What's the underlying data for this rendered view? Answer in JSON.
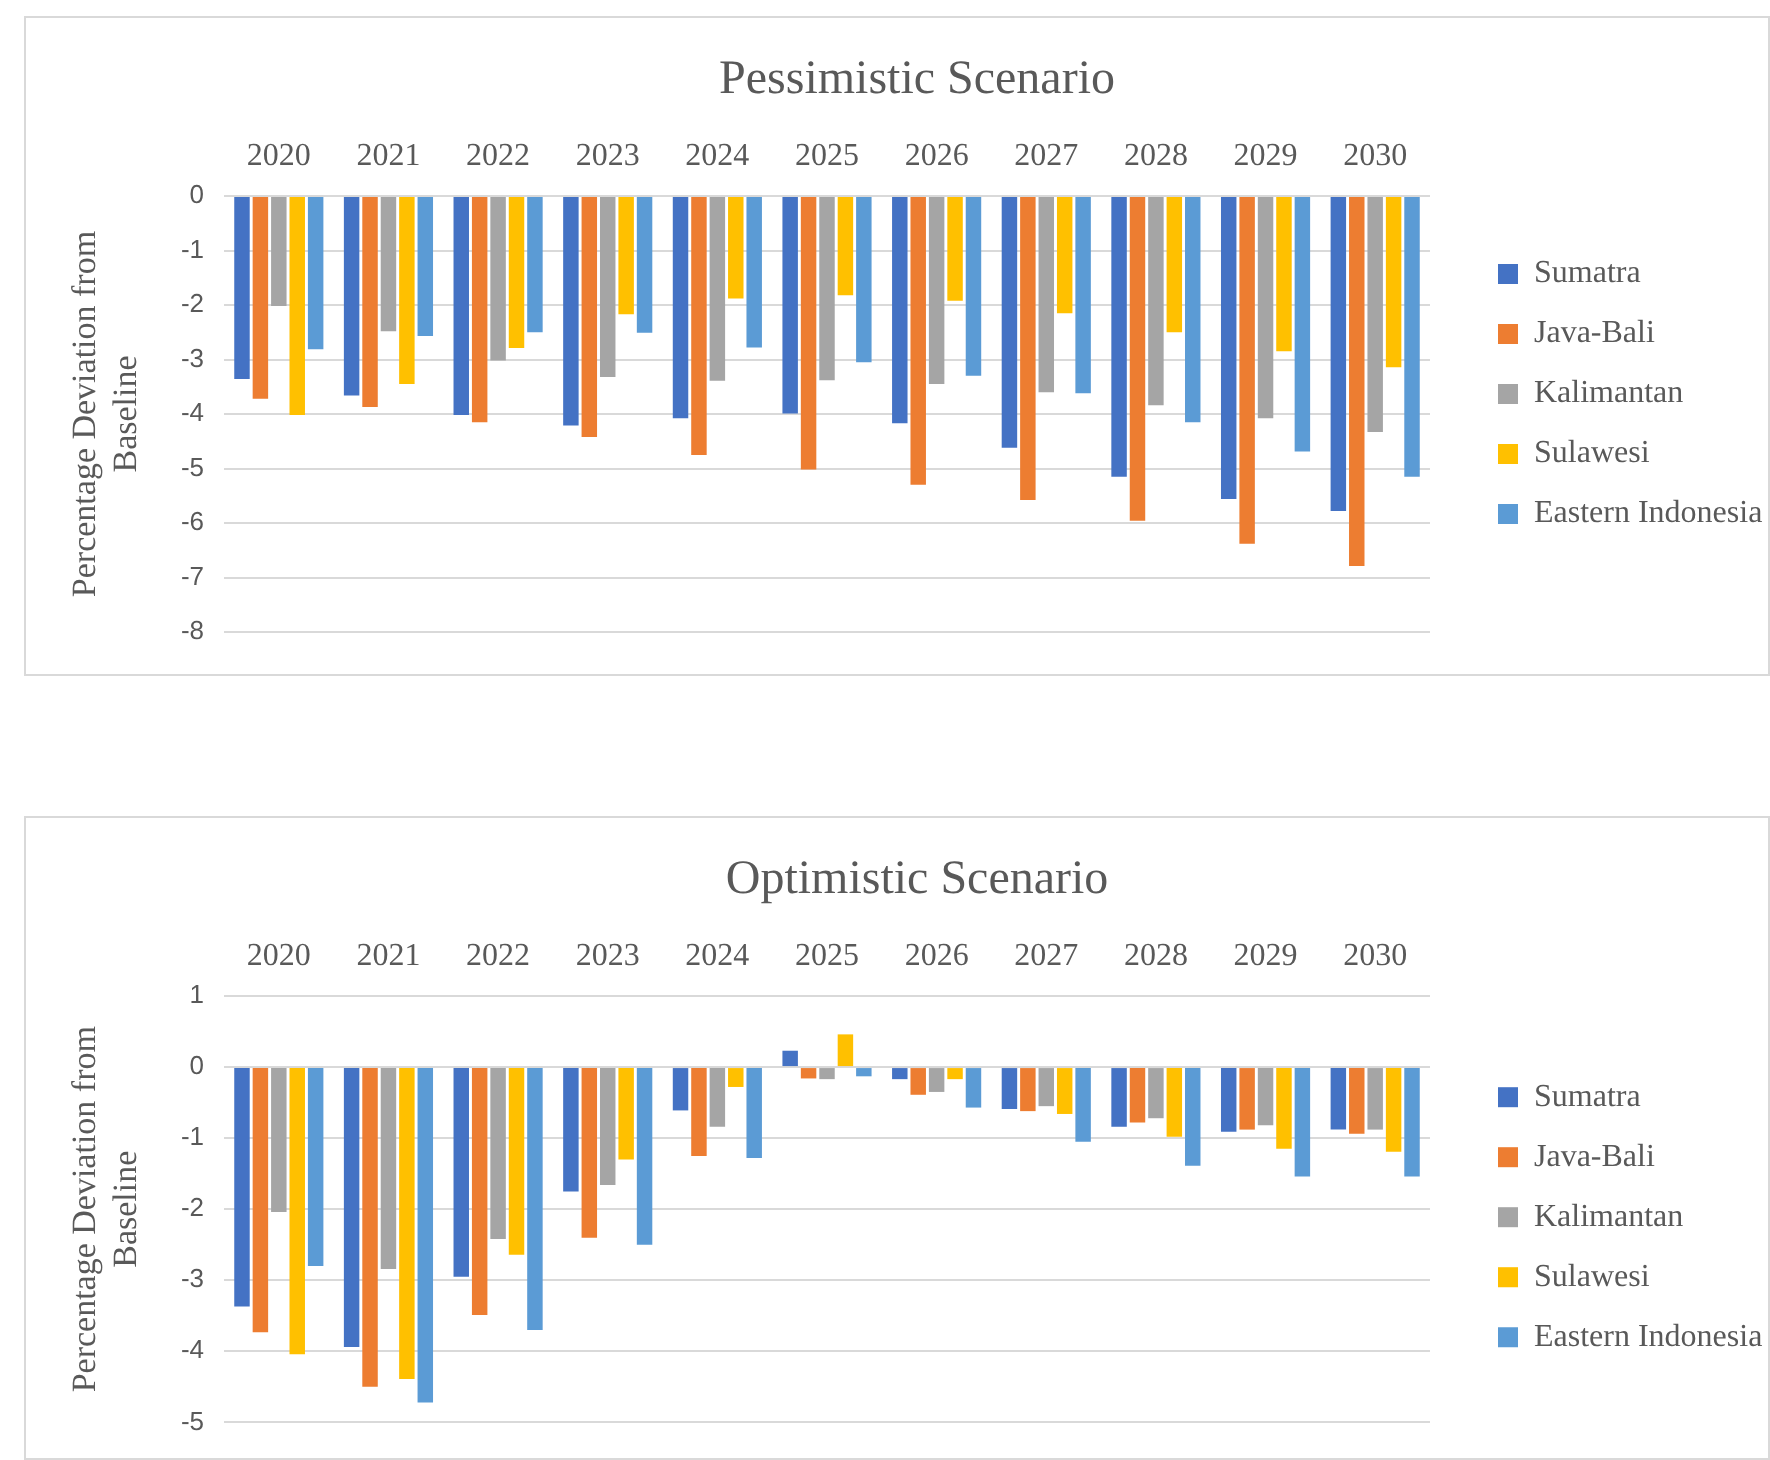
{
  "chart_data": [
    {
      "type": "bar",
      "title": "Pessimistic Scenario",
      "ylabel": "Percentage Deviation from Baseline",
      "categories": [
        "2020",
        "2021",
        "2022",
        "2023",
        "2024",
        "2025",
        "2026",
        "2027",
        "2028",
        "2029",
        "2030"
      ],
      "series": [
        {
          "name": "Sumatra",
          "color": "#4472c4",
          "values": [
            -3.36,
            -3.66,
            -4.02,
            -4.21,
            -4.08,
            -3.99,
            -4.17,
            -4.62,
            -5.15,
            -5.56,
            -5.78
          ]
        },
        {
          "name": "Java-Bali",
          "color": "#ed7d31",
          "values": [
            -3.72,
            -3.87,
            -4.15,
            -4.42,
            -4.75,
            -5.02,
            -5.3,
            -5.58,
            -5.96,
            -6.38,
            -6.79
          ]
        },
        {
          "name": "Kalimantan",
          "color": "#a5a5a5",
          "values": [
            -2.02,
            -2.48,
            -3.02,
            -3.32,
            -3.39,
            -3.38,
            -3.45,
            -3.6,
            -3.84,
            -4.08,
            -4.33
          ]
        },
        {
          "name": "Sulawesi",
          "color": "#ffc000",
          "values": [
            -4.02,
            -3.45,
            -2.79,
            -2.17,
            -1.88,
            -1.82,
            -1.92,
            -2.15,
            -2.5,
            -2.85,
            -3.14
          ]
        },
        {
          "name": "Eastern Indonesia",
          "color": "#5b9bd5",
          "values": [
            -2.81,
            -2.57,
            -2.5,
            -2.51,
            -2.78,
            -3.05,
            -3.3,
            -3.62,
            -4.15,
            -4.69,
            -5.15
          ]
        }
      ],
      "ylim": [
        -8,
        0
      ],
      "yticks": [
        -8,
        -7,
        -6,
        -5,
        -4,
        -3,
        -2,
        -1,
        0
      ],
      "grid": "y",
      "legend": "right"
    },
    {
      "type": "bar",
      "title": "Optimistic Scenario",
      "ylabel": "Percentage Deviation from Baseline",
      "categories": [
        "2020",
        "2021",
        "2022",
        "2023",
        "2024",
        "2025",
        "2026",
        "2027",
        "2028",
        "2029",
        "2030"
      ],
      "series": [
        {
          "name": "Sumatra",
          "color": "#4472c4",
          "values": [
            -3.37,
            -3.94,
            -2.95,
            -1.75,
            -0.61,
            0.23,
            -0.17,
            -0.59,
            -0.84,
            -0.91,
            -0.88
          ]
        },
        {
          "name": "Java-Bali",
          "color": "#ed7d31",
          "values": [
            -3.73,
            -4.5,
            -3.49,
            -2.4,
            -1.25,
            -0.16,
            -0.39,
            -0.62,
            -0.78,
            -0.88,
            -0.94
          ]
        },
        {
          "name": "Kalimantan",
          "color": "#a5a5a5",
          "values": [
            -2.04,
            -2.84,
            -2.42,
            -1.66,
            -0.84,
            -0.17,
            -0.35,
            -0.55,
            -0.72,
            -0.82,
            -0.88
          ]
        },
        {
          "name": "Sulawesi",
          "color": "#ffc000",
          "values": [
            -4.04,
            -4.39,
            -2.64,
            -1.3,
            -0.28,
            0.46,
            -0.17,
            -0.66,
            -0.98,
            -1.15,
            -1.19
          ]
        },
        {
          "name": "Eastern Indonesia",
          "color": "#5b9bd5",
          "values": [
            -2.8,
            -4.72,
            -3.7,
            -2.5,
            -1.28,
            -0.13,
            -0.57,
            -1.05,
            -1.39,
            -1.54,
            -1.54
          ]
        }
      ],
      "ylim": [
        -5,
        1
      ],
      "yticks": [
        -5,
        -4,
        -3,
        -2,
        -1,
        0,
        1
      ],
      "grid": "y",
      "legend": "right"
    }
  ]
}
